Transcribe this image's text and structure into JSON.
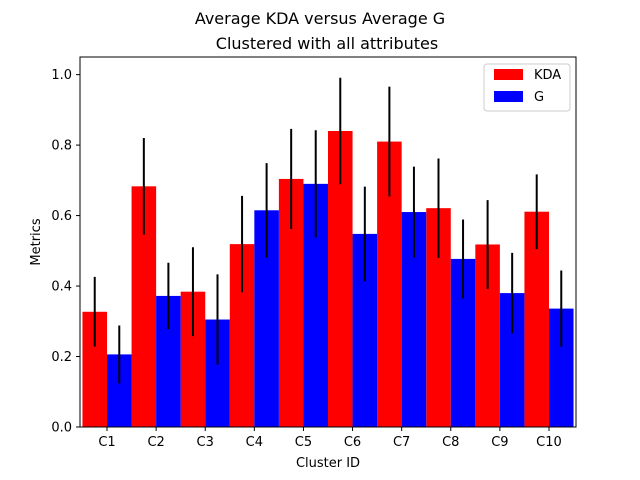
{
  "chart_data": {
    "type": "bar",
    "title": "Average KDA versus Average G",
    "subtitle": "Clustered with all attributes",
    "xlabel": "Cluster ID",
    "ylabel": "Metrics",
    "ylim": [
      0,
      1.05
    ],
    "yticks": [
      "0.0",
      "0.2",
      "0.4",
      "0.6",
      "0.8",
      "1.0"
    ],
    "legend_position": "top-right",
    "categories": [
      "C1",
      "C2",
      "C3",
      "C4",
      "C5",
      "C6",
      "C7",
      "C8",
      "C9",
      "C10"
    ],
    "series": [
      {
        "name": "KDA",
        "color": "#ff0000",
        "values": [
          0.327,
          0.683,
          0.384,
          0.519,
          0.704,
          0.84,
          0.81,
          0.621,
          0.518,
          0.611
        ],
        "errors": [
          0.099,
          0.137,
          0.126,
          0.137,
          0.142,
          0.151,
          0.156,
          0.141,
          0.126,
          0.106
        ]
      },
      {
        "name": "G",
        "color": "#0000ff",
        "values": [
          0.206,
          0.372,
          0.305,
          0.615,
          0.69,
          0.548,
          0.61,
          0.477,
          0.38,
          0.336
        ],
        "errors": [
          0.082,
          0.094,
          0.128,
          0.134,
          0.152,
          0.134,
          0.129,
          0.112,
          0.114,
          0.108
        ]
      }
    ]
  }
}
